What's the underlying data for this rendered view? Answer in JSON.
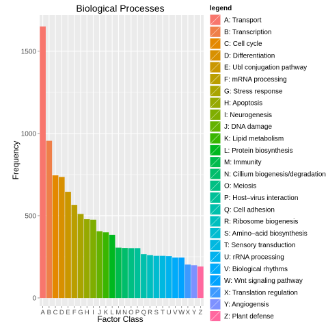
{
  "chart_data": {
    "type": "bar",
    "title": "Biological Processes",
    "xlabel": "Factor Class",
    "ylabel": "Frequency",
    "ylim": [
      -50,
      1720
    ],
    "yticks": [
      0,
      500,
      1000,
      1500
    ],
    "grid": true,
    "legend_position": "right",
    "legend_title": "legend",
    "categories": [
      "A",
      "B",
      "C",
      "D",
      "E",
      "F",
      "G",
      "H",
      "I",
      "J",
      "K",
      "L",
      "M",
      "N",
      "O",
      "P",
      "Q",
      "R",
      "S",
      "T",
      "U",
      "V",
      "W",
      "X",
      "Y",
      "Z"
    ],
    "values": [
      1650,
      955,
      745,
      735,
      645,
      565,
      510,
      478,
      475,
      405,
      398,
      383,
      305,
      303,
      302,
      302,
      265,
      260,
      255,
      255,
      253,
      245,
      245,
      202,
      198,
      190
    ],
    "legend_labels": [
      "A: Transport",
      "B: Transcription",
      "C: Cell cycle",
      "D: Differentiation",
      "E: Ubl conjugation pathway",
      "F: mRNA processing",
      "G: Stress response",
      "H: Apoptosis",
      "I: Neurogenesis",
      "J: DNA damage",
      "K: Lipid metabolism",
      "L: Protein biosynthesis",
      "M: Immunity",
      "N: Cillium biogenesis/degradation",
      "O: Meiosis",
      "P: Host–virus interaction",
      "Q: Cell adhesion",
      "R: Ribosome biogenesis",
      "S: Amino–acid biosynthesis",
      "T: Sensory transduction",
      "U: rRNA processing",
      "V: Biological rhythms",
      "W: Wnt signaling pathway",
      "X: Translation regulation",
      "Y: Angiogensis",
      "Z: Plant defense"
    ],
    "colors": [
      "#F8766D",
      "#EF7F49",
      "#E48800",
      "#D89000",
      "#CA9700",
      "#BA9E00",
      "#A9A400",
      "#96A900",
      "#7FAE00",
      "#64B200",
      "#39B600",
      "#00B81F",
      "#00BB4E",
      "#00BD6B",
      "#00BF83",
      "#00C098",
      "#00C0AC",
      "#00BFBE",
      "#00BCD0",
      "#00B8E0",
      "#00B2EE",
      "#00ABFA",
      "#00A3FF",
      "#3D9AFF",
      "#7D91FF",
      "#FF689F"
    ]
  }
}
